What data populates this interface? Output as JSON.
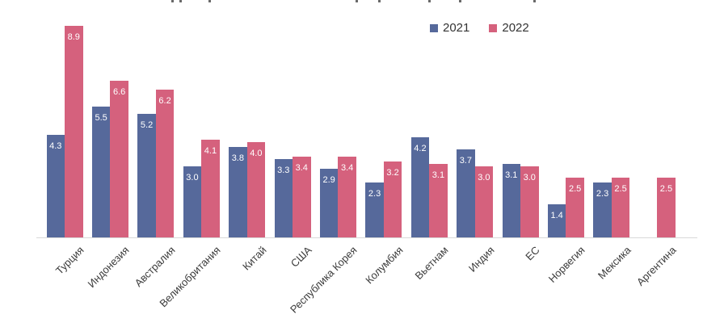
{
  "legend": {
    "position": "top-right"
  },
  "chart_data": {
    "type": "bar",
    "categories": [
      "Турция",
      "Индонезия",
      "Австралия",
      "Великобритания",
      "Китай",
      "США",
      "Республика Корея",
      "Колумбия",
      "Вьетнам",
      "Индия",
      "ЕС",
      "Норвегия",
      "Мексика",
      "Аргентина"
    ],
    "series": [
      {
        "name": "2021",
        "color": "#56699B",
        "values": [
          4.3,
          5.5,
          5.2,
          3.0,
          3.8,
          3.3,
          2.9,
          2.3,
          4.2,
          3.7,
          3.1,
          1.4,
          2.3,
          null
        ]
      },
      {
        "name": "2022",
        "color": "#D5617D",
        "values": [
          8.9,
          6.6,
          6.2,
          4.1,
          4.0,
          3.4,
          3.4,
          3.2,
          3.1,
          3.0,
          3.0,
          2.5,
          2.5,
          2.5
        ]
      }
    ],
    "title": "",
    "xlabel": "",
    "ylabel": "",
    "ylim": [
      0,
      9
    ],
    "grid": false,
    "legend_position": "top",
    "value_labels_visible": true,
    "value_label_decimals": 1,
    "value_label_color": "#FFFFFF",
    "axis_line_color": "#D9D9D9",
    "xtick_label_color": "#3B3B3B",
    "xtick_rotation_deg": 45
  }
}
